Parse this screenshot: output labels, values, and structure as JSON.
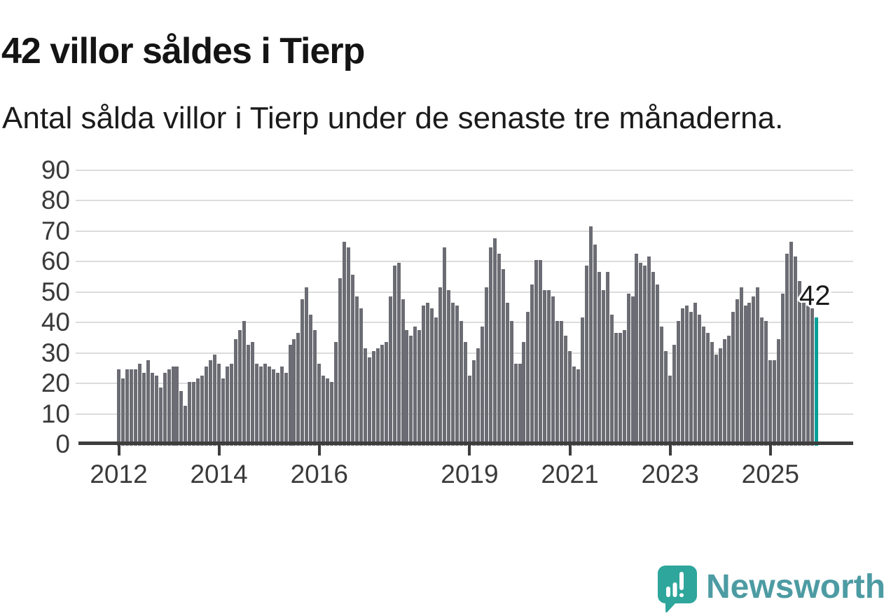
{
  "header": {
    "title": "42 villor såldes i Tierp",
    "subtitle": "Antal sålda villor i Tierp under de senaste tre månaderna."
  },
  "chart_data": {
    "type": "bar",
    "title": "42 villor såldes i Tierp",
    "subtitle": "Antal sålda villor i Tierp under de senaste tre månaderna.",
    "frequency": "monthly",
    "x_start": "2012-01",
    "ylim": [
      0,
      90
    ],
    "y_ticks": [
      0,
      10,
      20,
      30,
      40,
      50,
      60,
      70,
      80,
      90
    ],
    "x_ticks": [
      {
        "label": "2012",
        "month_index": 0
      },
      {
        "label": "2014",
        "month_index": 24
      },
      {
        "label": "2016",
        "month_index": 48
      },
      {
        "label": "2019",
        "month_index": 84
      },
      {
        "label": "2021",
        "month_index": 108
      },
      {
        "label": "2023",
        "month_index": 132
      },
      {
        "label": "2025",
        "month_index": 156
      }
    ],
    "grid": true,
    "legend": "none",
    "values": [
      25,
      22,
      25,
      25,
      25,
      27,
      24,
      28,
      24,
      23,
      19,
      24,
      25,
      26,
      26,
      18,
      13,
      21,
      21,
      22,
      23,
      26,
      28,
      30,
      27,
      22,
      26,
      27,
      35,
      38,
      41,
      33,
      34,
      27,
      26,
      27,
      26,
      25,
      24,
      26,
      24,
      33,
      35,
      37,
      48,
      52,
      43,
      38,
      27,
      23,
      22,
      21,
      34,
      55,
      67,
      65,
      56,
      49,
      45,
      32,
      29,
      31,
      32,
      33,
      34,
      49,
      59,
      60,
      48,
      38,
      36,
      39,
      38,
      46,
      47,
      45,
      42,
      52,
      65,
      51,
      47,
      46,
      41,
      34,
      23,
      28,
      32,
      39,
      52,
      65,
      68,
      63,
      58,
      47,
      41,
      27,
      27,
      34,
      44,
      53,
      61,
      61,
      51,
      51,
      49,
      41,
      41,
      36,
      31,
      26,
      25,
      42,
      59,
      72,
      66,
      57,
      51,
      57,
      43,
      37,
      37,
      38,
      50,
      49,
      63,
      60,
      59,
      62,
      57,
      53,
      39,
      31,
      23,
      33,
      41,
      45,
      46,
      44,
      47,
      43,
      39,
      37,
      34,
      30,
      32,
      35,
      36,
      44,
      48,
      52,
      46,
      47,
      49,
      52,
      42,
      41,
      28,
      28,
      35,
      50,
      63,
      67,
      62,
      54,
      48,
      46,
      45,
      42
    ],
    "highlight_last_bar": true,
    "highlight_value": 42,
    "annotation": {
      "text": "42"
    },
    "colors": {
      "bar": "#6c6c74",
      "highlight": "#00a099",
      "grid": "#dcdcdc",
      "axis": "#3d3d3d",
      "tick_label": "#3a3a3a"
    }
  },
  "footer": {
    "brand_label": "Newsworthy",
    "brand_text_color": "#4d9ba3",
    "logo_bubble_color": "#2ea69c",
    "logo_icon": "speech-bubble-bar-chart-exclamation-icon"
  }
}
